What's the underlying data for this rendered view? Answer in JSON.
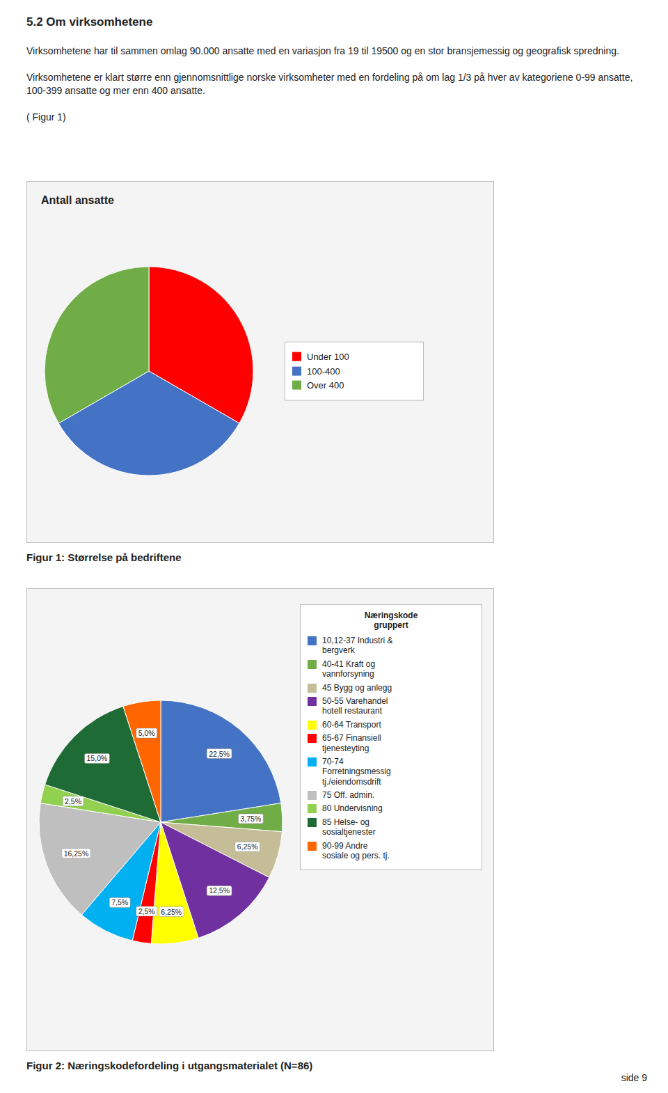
{
  "heading": "5.2  Om virksomhetene",
  "paragraphs": [
    "Virksomhetene har til sammen omlag 90.000 ansatte med en variasjon fra 19 til 19500 og en stor bransjemessig og geografisk spredning.",
    "Virksomhetene er klart større enn gjennomsnittlige norske virksomheter med en fordeling på om lag 1/3 på hver av kategoriene 0-99 ansatte, 100-399 ansatte og mer enn 400 ansatte.",
    "( Figur 1)"
  ],
  "page_number": "side 9",
  "chart_data": [
    {
      "type": "pie",
      "title": "Antall ansatte",
      "caption": "Figur 1: Størrelse på bedriftene",
      "categories": [
        "Under 100",
        "100-400",
        "Over 400"
      ],
      "values": [
        33.33,
        33.33,
        33.34
      ],
      "colors": [
        "#FF0000",
        "#4472C4",
        "#70AD47"
      ],
      "legend": "right",
      "data_labels": false
    },
    {
      "type": "pie",
      "caption": "Figur 2: Næringskodefordeling i utgangsmaterialet (N=86)",
      "legend_title": "Næringskode\ngruppert",
      "categories": [
        "10,12-37 Industri &\nbergverk",
        "40-41 Kraft og\nvannforsyning",
        "45 Bygg og anlegg",
        "50-55 Varehandel\nhotell restaurant",
        "60-64 Transport",
        "65-67 Finansiell\ntjenesteyting",
        "70-74\nForretningsmessig\ntj./eiendomsdrift",
        "75 Off. admin.",
        "80 Undervisning",
        "85 Helse- og\nsosialtjenester",
        "90-99 Andre\nsosiale og pers. tj."
      ],
      "values": [
        22.5,
        3.75,
        6.25,
        12.5,
        6.25,
        2.5,
        7.5,
        16.25,
        2.5,
        15.0,
        5.0
      ],
      "value_labels": [
        "22,5%",
        "3,75%",
        "6,25%",
        "12,5%",
        "6,25%",
        "2,5%",
        "7,5%",
        "16,25%",
        "2,5%",
        "15,0%",
        "5,0%"
      ],
      "colors": [
        "#4472C4",
        "#70AD47",
        "#C4BD97",
        "#7030A0",
        "#FFFF00",
        "#FF0000",
        "#00B0F0",
        "#BFBFBF",
        "#92D050",
        "#1F6B35",
        "#FF6600"
      ],
      "legend": "right",
      "data_labels": true
    }
  ]
}
